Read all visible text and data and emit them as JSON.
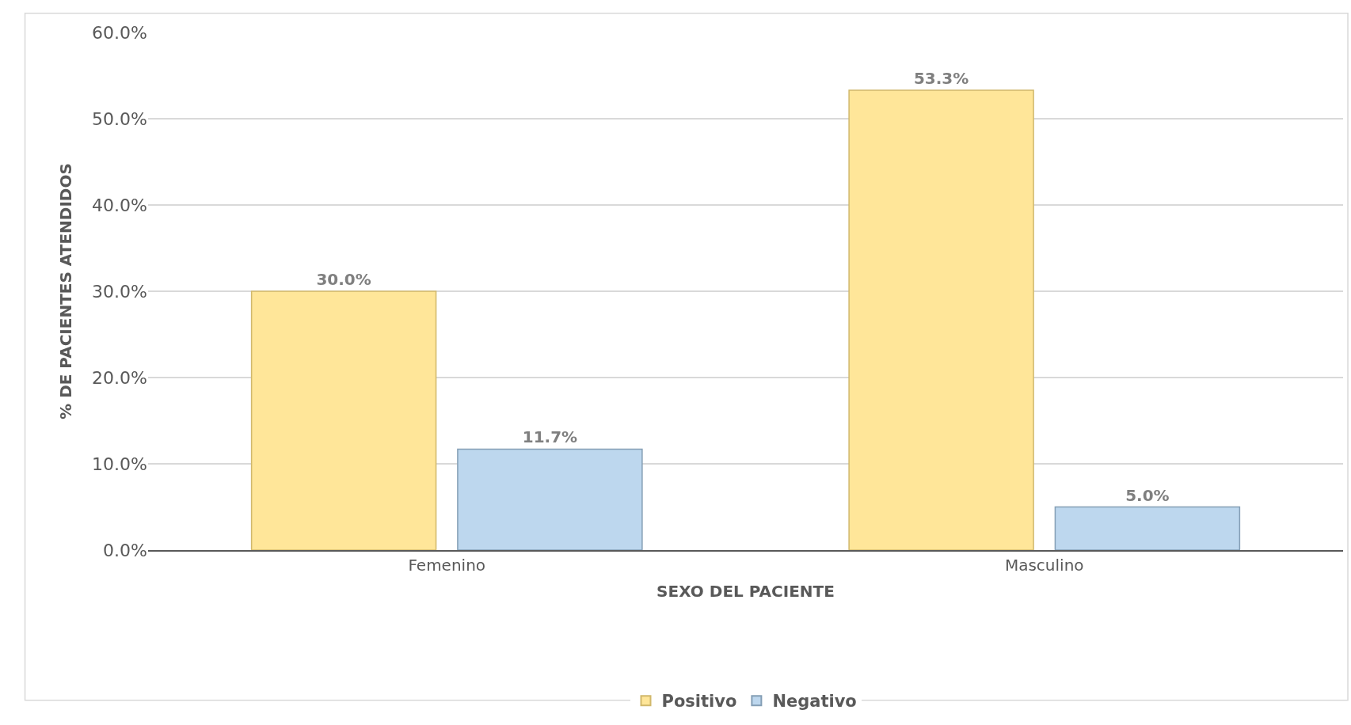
{
  "chart_data": {
    "type": "bar",
    "xlabel": "SEXO DEL PACIENTE",
    "ylabel": "% DE PACIENTES ATENDIDOS",
    "categories": [
      "Femenino",
      "Masculino"
    ],
    "series": [
      {
        "name": "Positivo",
        "color": "#ffe699",
        "values": [
          30.0,
          53.3
        ],
        "value_labels": [
          "30.0%",
          "53.3%"
        ]
      },
      {
        "name": "Negativo",
        "color": "#bdd7ee",
        "values": [
          11.7,
          5.0
        ],
        "value_labels": [
          "11.7%",
          "5.0%"
        ]
      }
    ],
    "ylim": [
      0,
      60
    ],
    "yticks": [
      {
        "value": 0,
        "label": "0.0%"
      },
      {
        "value": 10,
        "label": "10.0%"
      },
      {
        "value": 20,
        "label": "20.0%"
      },
      {
        "value": 30,
        "label": "30.0%"
      },
      {
        "value": 40,
        "label": "40.0%"
      },
      {
        "value": 50,
        "label": "50.0%"
      },
      {
        "value": 60,
        "label": "60.0%"
      }
    ],
    "grid": "y",
    "legend": "bottom"
  }
}
